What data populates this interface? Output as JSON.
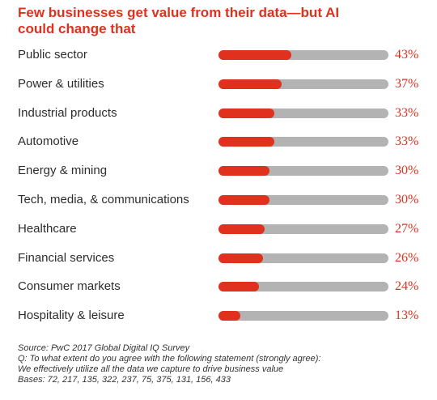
{
  "chart_data": {
    "type": "bar",
    "orientation": "horizontal",
    "title": "Few businesses get value from their data—but AI could change that",
    "categories": [
      "Public sector",
      "Power & utilities",
      "Industrial products",
      "Automotive",
      "Energy & mining",
      "Tech, media, & communications",
      "Healthcare",
      "Financial services",
      "Consumer markets",
      "Hospitality & leisure"
    ],
    "values": [
      43,
      37,
      33,
      33,
      30,
      30,
      27,
      26,
      24,
      13
    ],
    "value_labels": [
      "43%",
      "37%",
      "33%",
      "33%",
      "30%",
      "30%",
      "27%",
      "26%",
      "24%",
      "13%"
    ],
    "xlim": [
      0,
      100
    ],
    "grid": false,
    "legend": "none",
    "colors": {
      "fill": "#e0301e",
      "track": "#b3b3b3",
      "title": "#e0301e",
      "value_text": "#e0301e",
      "label_text": "#2d2d2d"
    }
  },
  "notes": {
    "source": "Source: PwC 2017 Global Digital IQ Survey",
    "question": "Q: To what extent do you agree with the following statement (strongly agree):",
    "statement": "We effectively utilize all the data we capture to drive business value",
    "bases": "Bases: 72, 217, 135, 322, 237, 75, 375, 131, 156, 433"
  }
}
